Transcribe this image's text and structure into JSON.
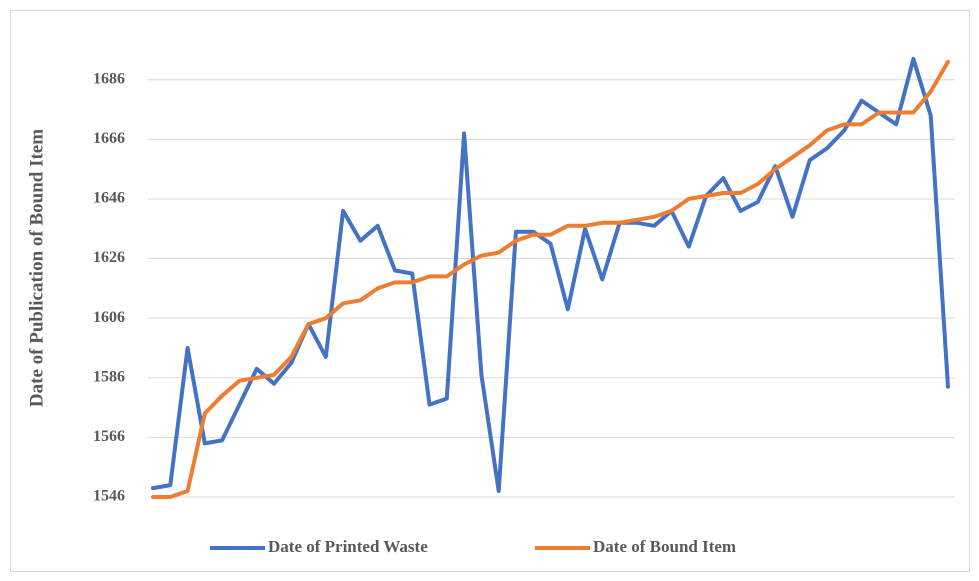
{
  "chart_data": {
    "type": "line",
    "y_label": "Date of Publication of Bound Item",
    "categories": [
      null,
      null,
      null,
      null,
      null,
      null,
      null,
      null,
      null,
      null,
      null,
      null,
      null,
      null,
      null,
      null,
      null,
      null,
      null,
      null,
      null,
      null,
      null,
      null,
      null,
      null,
      null,
      null,
      null,
      null,
      null,
      null,
      null,
      null,
      null,
      null,
      null,
      null,
      null,
      null,
      null,
      null,
      null,
      null,
      null,
      null,
      null
    ],
    "series": [
      {
        "name": "Date of Printed Waste",
        "color": "#4472c4",
        "values": [
          1549,
          1550,
          1596,
          1564,
          1565,
          1577,
          1589,
          1584,
          1591,
          1604,
          1593,
          1642,
          1632,
          1637,
          1622,
          1621,
          1577,
          1579,
          1668,
          1587,
          1548,
          1635,
          1635,
          1631,
          1609,
          1636,
          1619,
          1638,
          1638,
          1637,
          1642,
          1630,
          1647,
          1653,
          1642,
          1645,
          1657,
          1640,
          1659,
          1663,
          1669,
          1679,
          1675,
          1671,
          1693,
          1674,
          1583
        ]
      },
      {
        "name": "Date of Bound Item",
        "color": "#ed7d31",
        "values": [
          1546,
          1546,
          1548,
          1574,
          1580,
          1585,
          1586,
          1587,
          1593,
          1604,
          1606,
          1611,
          1612,
          1616,
          1618,
          1618,
          1620,
          1620,
          1624,
          1627,
          1628,
          1632,
          1634,
          1634,
          1637,
          1637,
          1638,
          1638,
          1639,
          1640,
          1642,
          1646,
          1647,
          1648,
          1648,
          1651,
          1656,
          1660,
          1664,
          1669,
          1671,
          1671,
          1675,
          1675,
          1675,
          1682,
          1692
        ]
      }
    ],
    "ylim": [
      1546,
      1700
    ],
    "yticks": [
      1546,
      1566,
      1586,
      1606,
      1626,
      1646,
      1666,
      1686
    ],
    "grid": true,
    "legend": "bottom"
  }
}
